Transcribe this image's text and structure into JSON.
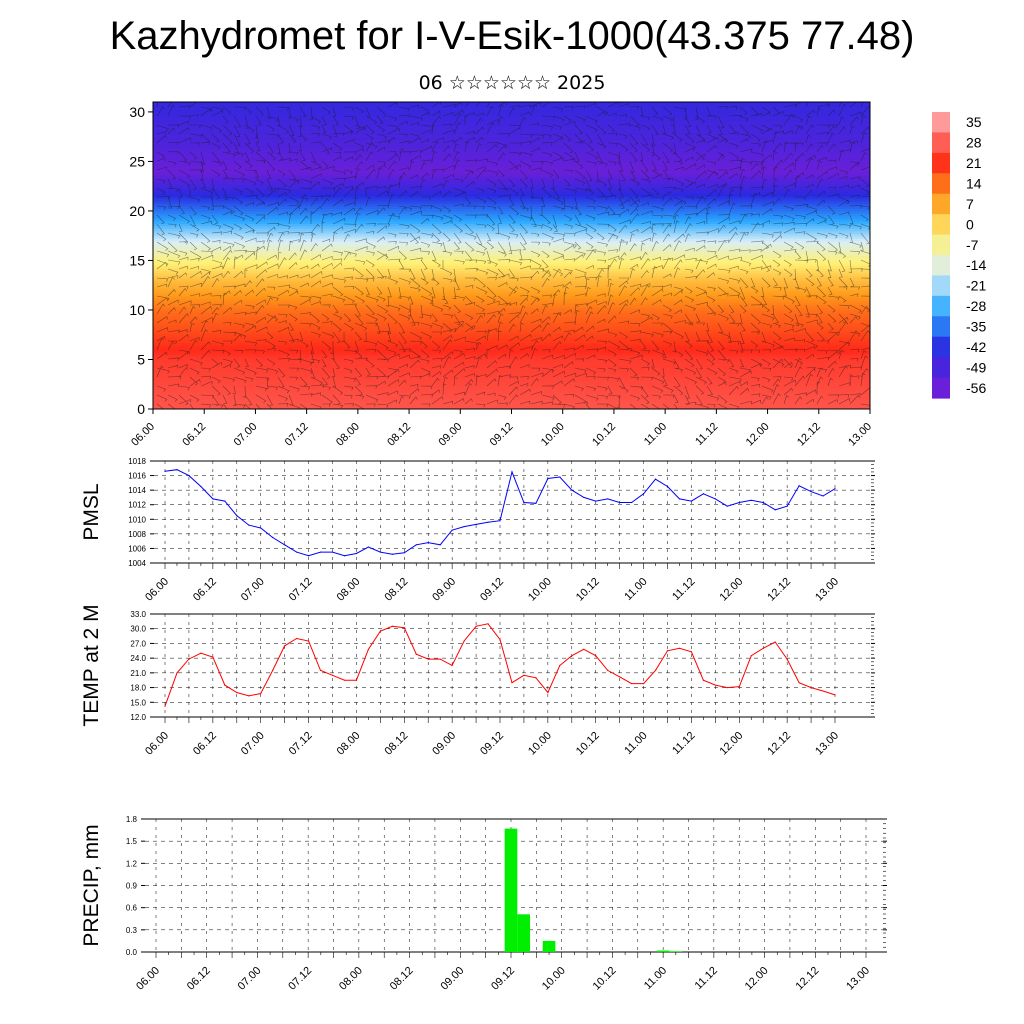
{
  "title": "Kazhydromet for I-V-Esik-1000(43.375 77.48)",
  "subtitle": "06 ☆☆☆☆☆☆ 2025",
  "colorbar_labels": [
    "35",
    "28",
    "21",
    "14",
    "7",
    "0",
    "-7",
    "-14",
    "-21",
    "-28",
    "-35",
    "-42",
    "-49",
    "-56"
  ],
  "chart_data": [
    {
      "type": "heatmap",
      "name": "vertical temperature and wind cross-section",
      "x_ticks": [
        "06.00",
        "06.12",
        "07.00",
        "07.12",
        "08.00",
        "08.12",
        "09.00",
        "09.12",
        "10.00",
        "10.12",
        "11.00",
        "11.12",
        "12.00",
        "12.12",
        "13.00"
      ],
      "y_ticks": [
        "0",
        "5",
        "10",
        "15",
        "20",
        "25",
        "30"
      ],
      "ylim": [
        0,
        31
      ],
      "color_scale": {
        "min": -56,
        "max": 35,
        "colors": [
          "#6a1fd8",
          "#2a2ae0",
          "#2aa8ff",
          "#d8eef8",
          "#fff176",
          "#ff9a1a",
          "#ff2a1a",
          "#ff9a9a"
        ]
      },
      "temperature_profile": [
        {
          "height": 0,
          "value": 27
        },
        {
          "height": 5,
          "value": 24
        },
        {
          "height": 10,
          "value": 14
        },
        {
          "height": 13,
          "value": 4
        },
        {
          "height": 15,
          "value": -5
        },
        {
          "height": 16.5,
          "value": -14
        },
        {
          "height": 19,
          "value": -30
        },
        {
          "height": 22,
          "value": -45
        },
        {
          "height": 24,
          "value": -56
        },
        {
          "height": 27,
          "value": -50
        },
        {
          "height": 31,
          "value": -45
        }
      ]
    },
    {
      "type": "line",
      "ylabel": "PMSL",
      "ylim": [
        1004,
        1018
      ],
      "y_ticks": [
        "1004",
        "1006",
        "1008",
        "1010",
        "1012",
        "1014",
        "1016",
        "1018"
      ],
      "x_ticks": [
        "06.00",
        "06.12",
        "07.00",
        "07.12",
        "08.00",
        "08.12",
        "09.00",
        "09.12",
        "10.00",
        "10.12",
        "11.00",
        "11.12",
        "12.00",
        "12.12",
        "13.00"
      ],
      "x": [
        0,
        3,
        6,
        9,
        12,
        15,
        18,
        21,
        24,
        27,
        30,
        33,
        36,
        39,
        42,
        45,
        48,
        51,
        54,
        57,
        60,
        63,
        66,
        69,
        72,
        75,
        78,
        81,
        84,
        87,
        90,
        93,
        96,
        99,
        102,
        105,
        108,
        111,
        114,
        117,
        120,
        123,
        126,
        129,
        132,
        135,
        138,
        141,
        144,
        147,
        150,
        153,
        156,
        159,
        162,
        165,
        168
      ],
      "series": [
        {
          "color": "#0000ff",
          "values": [
            1016.6,
            1016.8,
            1016.0,
            1014.5,
            1012.8,
            1012.5,
            1010.5,
            1009.2,
            1008.8,
            1007.5,
            1006.5,
            1005.5,
            1005.0,
            1005.5,
            1005.5,
            1005.0,
            1005.3,
            1006.2,
            1005.5,
            1005.2,
            1005.4,
            1006.5,
            1006.8,
            1006.5,
            1008.5,
            1009.0,
            1009.3,
            1009.6,
            1009.8,
            1016.5,
            1012.3,
            1012.2,
            1015.6,
            1015.8,
            1014.0,
            1013.0,
            1012.5,
            1012.8,
            1012.3,
            1012.3,
            1013.5,
            1015.5,
            1014.5,
            1012.8,
            1012.5,
            1013.5,
            1012.8,
            1011.8,
            1012.3,
            1012.6,
            1012.3,
            1011.3,
            1011.8,
            1014.6,
            1013.8,
            1013.2,
            1014.2
          ]
        }
      ]
    },
    {
      "type": "line",
      "ylabel": "TEMP at 2 M",
      "ylim": [
        12.0,
        33.0
      ],
      "y_ticks": [
        "12.0",
        "15.0",
        "18.0",
        "21.0",
        "24.0",
        "27.0",
        "30.0",
        "33.0"
      ],
      "x_ticks": [
        "06.00",
        "06.12",
        "07.00",
        "07.12",
        "08.00",
        "08.12",
        "09.00",
        "09.12",
        "10.00",
        "10.12",
        "11.00",
        "11.12",
        "12.00",
        "12.12",
        "13.00"
      ],
      "x": [
        0,
        3,
        6,
        9,
        12,
        15,
        18,
        21,
        24,
        27,
        30,
        33,
        36,
        39,
        42,
        45,
        48,
        51,
        54,
        57,
        60,
        63,
        66,
        69,
        72,
        75,
        78,
        81,
        84,
        87,
        90,
        93,
        96,
        99,
        102,
        105,
        108,
        111,
        114,
        117,
        120,
        123,
        126,
        129,
        132,
        135,
        138,
        141,
        144,
        147,
        150,
        153,
        156,
        159,
        162,
        165,
        168
      ],
      "series": [
        {
          "color": "#ff0000",
          "values": [
            14.2,
            21.0,
            23.8,
            25.0,
            24.2,
            18.5,
            17.0,
            16.3,
            16.8,
            21.5,
            26.5,
            28.0,
            27.5,
            21.5,
            20.5,
            19.5,
            19.5,
            25.8,
            29.5,
            30.5,
            30.2,
            24.8,
            23.8,
            23.8,
            22.5,
            27.5,
            30.5,
            31.0,
            27.8,
            19.0,
            20.5,
            20.0,
            17.0,
            22.5,
            24.5,
            25.8,
            24.5,
            21.5,
            20.2,
            18.8,
            18.8,
            21.5,
            25.5,
            26.0,
            25.3,
            19.5,
            18.5,
            18.0,
            18.2,
            24.5,
            26.0,
            27.3,
            23.8,
            19.0,
            18.0,
            17.3,
            16.5
          ]
        }
      ]
    },
    {
      "type": "bar",
      "ylabel": "PRECIP, mm",
      "ylim": [
        0,
        1.8
      ],
      "y_ticks": [
        "0.0",
        "0.3",
        "0.6",
        "0.9",
        "1.2",
        "1.5",
        "1.8"
      ],
      "x_ticks": [
        "06.00",
        "06.12",
        "07.00",
        "07.12",
        "08.00",
        "08.12",
        "09.00",
        "09.12",
        "10.00",
        "10.12",
        "11.00",
        "11.12",
        "12.00",
        "12.12",
        "13.00"
      ],
      "bar_color": "#00ee00",
      "bars": [
        {
          "x": 84,
          "value": 1.67
        },
        {
          "x": 87,
          "value": 0.51
        },
        {
          "x": 93,
          "value": 0.15
        },
        {
          "x": 120,
          "value": 0.02
        },
        {
          "x": 123,
          "value": 0.01
        }
      ]
    }
  ]
}
